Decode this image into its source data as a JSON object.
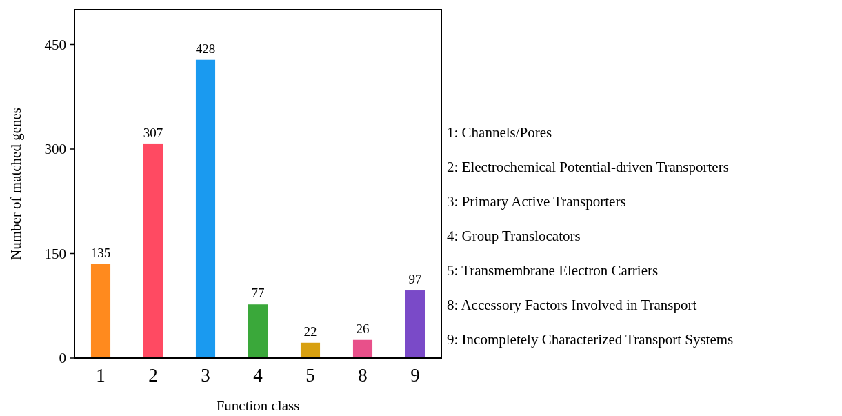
{
  "chart_data": {
    "type": "bar",
    "xlabel": "Function class",
    "ylabel": "Number of matched genes",
    "categories": [
      "1",
      "2",
      "3",
      "4",
      "5",
      "8",
      "9"
    ],
    "values": [
      135,
      307,
      428,
      77,
      22,
      26,
      97
    ],
    "colors": [
      "#ff8a1e",
      "#ff4a62",
      "#1a9af0",
      "#3aa83a",
      "#d8a010",
      "#e8508a",
      "#7a4ac8"
    ],
    "ylim": [
      0,
      500
    ],
    "yticks": [
      0,
      150,
      300,
      450
    ],
    "data_labels": true,
    "grid": false,
    "annotations": [
      "1: Channels/Pores",
      "2: Electrochemical Potential-driven Transporters",
      "3: Primary Active Transporters",
      "4: Group Translocators",
      "5: Transmembrane Electron Carriers",
      "8: Accessory Factors Involved in Transport",
      "9: Incompletely Characterized Transport Systems"
    ]
  }
}
